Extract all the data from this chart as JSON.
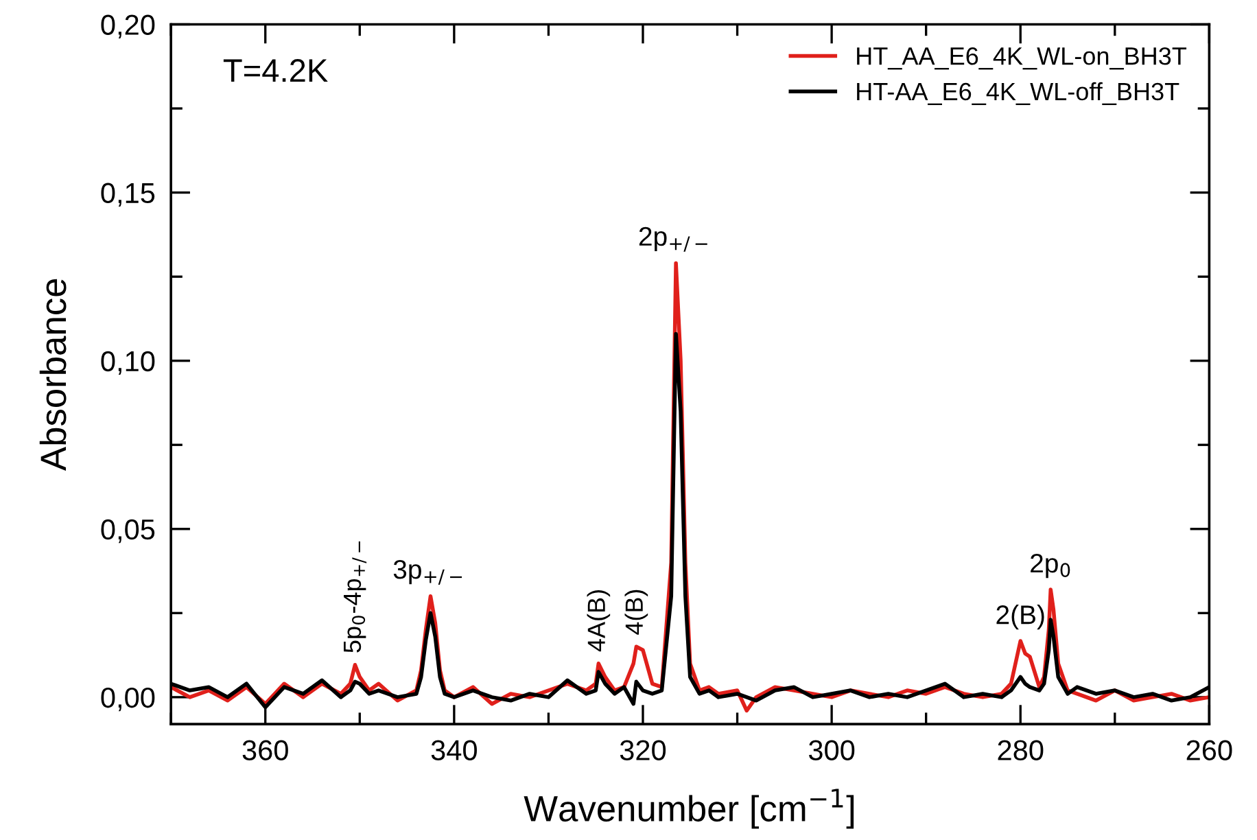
{
  "chart_data": {
    "type": "line",
    "xlabel": "Wavenumber [cm$^{−1}$]",
    "ylabel": "Absorbance",
    "xlim": [
      370,
      260
    ],
    "ylim": [
      -0.008,
      0.2
    ],
    "xticks": [
      {
        "value": 370,
        "label": null
      },
      360,
      {
        "value": 350,
        "label": null
      },
      340,
      {
        "value": 330,
        "label": null
      },
      320,
      {
        "value": 310,
        "label": null
      },
      300,
      {
        "value": 290,
        "label": null
      },
      280,
      {
        "value": 270,
        "label": null
      },
      260
    ],
    "yticks": [
      {
        "value": 0,
        "label": "0,00"
      },
      {
        "value": 0.025,
        "label": null
      },
      {
        "value": 0.05,
        "label": "0,05"
      },
      {
        "value": 0.075,
        "label": null
      },
      {
        "value": 0.1,
        "label": "0,10"
      },
      {
        "value": 0.125,
        "label": null
      },
      {
        "value": 0.15,
        "label": "0,15"
      },
      {
        "value": 0.175,
        "label": null
      },
      {
        "value": 0.2,
        "label": "0,20"
      }
    ],
    "grid": false,
    "legend": "top right",
    "marker": "none",
    "line_style": "solid",
    "x": [
      370,
      368,
      366,
      364,
      362,
      360,
      358,
      356,
      354,
      352,
      351,
      350.5,
      350,
      349,
      348,
      346,
      344,
      343.5,
      343,
      342.5,
      342,
      341.5,
      341,
      340,
      338,
      336,
      334,
      332,
      330,
      328,
      326,
      325,
      324.7,
      324,
      323,
      322,
      321,
      320.7,
      320,
      319,
      318,
      317,
      316.5,
      316,
      315.5,
      315,
      314,
      313,
      312,
      310,
      309,
      308,
      306,
      304,
      302,
      300,
      298,
      296,
      294,
      292,
      290,
      288,
      286,
      284,
      282,
      281,
      280,
      279.5,
      279,
      278,
      277.5,
      277,
      276.8,
      276.5,
      276,
      275,
      274,
      272,
      270,
      268,
      266,
      264,
      262,
      260
    ],
    "series": [
      {
        "name": "HT_AA_E6_4K_WL-on_BH3T",
        "color": "#e0201b",
        "values": [
          0.003,
          0.0,
          0.002,
          -0.001,
          0.003,
          -0.002,
          0.004,
          0.0,
          0.004,
          0.001,
          0.004,
          0.0096,
          0.006,
          0.002,
          0.004,
          -0.001,
          0.002,
          0.008,
          0.02,
          0.03,
          0.022,
          0.008,
          0.002,
          0.0,
          0.003,
          -0.002,
          0.001,
          0.0,
          0.002,
          0.004,
          0.002,
          0.004,
          0.01,
          0.006,
          0.002,
          0.003,
          0.01,
          0.015,
          0.014,
          0.004,
          0.003,
          0.04,
          0.129,
          0.1,
          0.04,
          0.01,
          0.002,
          0.003,
          0.001,
          0.002,
          -0.004,
          0.0,
          0.003,
          0.002,
          0.001,
          0.0,
          0.002,
          0.001,
          0.0,
          0.002,
          0.001,
          0.003,
          0.001,
          0.0,
          0.001,
          0.004,
          0.0167,
          0.013,
          0.012,
          0.003,
          0.006,
          0.02,
          0.032,
          0.026,
          0.01,
          0.002,
          0.001,
          -0.001,
          0.002,
          -0.001,
          0.0,
          0.001,
          -0.001,
          0.0
        ]
      },
      {
        "name": "HT-AA_E6_4K_WL-off_BH3T",
        "color": "#000000",
        "values": [
          0.004,
          0.002,
          0.003,
          0.0,
          0.004,
          -0.003,
          0.003,
          0.001,
          0.005,
          0.0,
          0.002,
          0.0046,
          0.004,
          0.001,
          0.002,
          0.0,
          0.001,
          0.006,
          0.017,
          0.025,
          0.018,
          0.006,
          0.001,
          0.0,
          0.002,
          0.0,
          -0.001,
          0.001,
          0.0,
          0.005,
          0.001,
          0.002,
          0.0075,
          0.004,
          0.001,
          0.003,
          -0.002,
          0.0046,
          0.002,
          0.001,
          0.002,
          0.03,
          0.108,
          0.085,
          0.03,
          0.006,
          0.001,
          0.002,
          0.0,
          0.001,
          0.0,
          -0.001,
          0.002,
          0.003,
          0.0,
          0.001,
          0.002,
          0.0,
          0.001,
          0.0,
          0.002,
          0.004,
          0.0,
          0.001,
          0.0,
          0.002,
          0.006,
          0.004,
          0.003,
          0.002,
          0.004,
          0.014,
          0.023,
          0.018,
          0.006,
          0.001,
          0.003,
          0.001,
          0.002,
          0.0,
          0.001,
          -0.001,
          0.0,
          0.003
        ]
      }
    ],
    "annotations": [
      "T=4.2K",
      {
        "text": "5p$_{0}$-4p$_{+/−}$",
        "x": 350.5,
        "y": 0.0096
      },
      {
        "text": "3p$_{+/−}$",
        "x": 342.5,
        "y": 0.03
      },
      {
        "text": "4A(B)",
        "x": 324.7,
        "y": 0.01
      },
      {
        "text": "4(B)",
        "x": 320.7,
        "y": 0.015
      },
      {
        "text": "2p$_{+/−}$",
        "x": 316.5,
        "y": 0.129
      },
      {
        "text": "2(B)",
        "x": 280,
        "y": 0.0167
      },
      {
        "text": "2p$_{0}$",
        "x": 276.8,
        "y": 0.032
      }
    ]
  }
}
